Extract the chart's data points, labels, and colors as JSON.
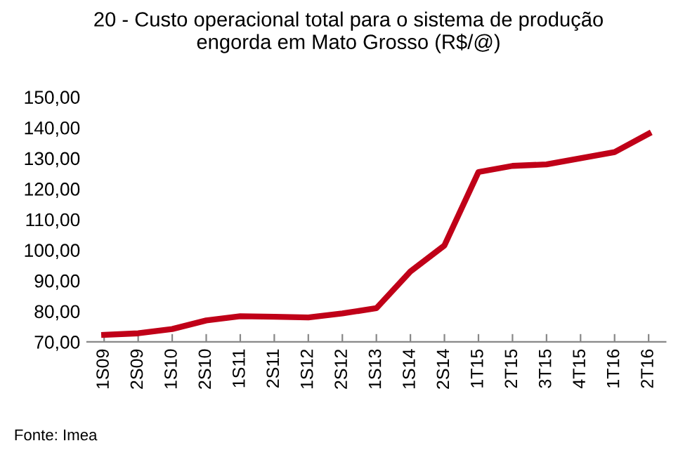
{
  "chart_data": {
    "type": "line",
    "title": "20 - Custo operacional total para o sistema de produção\nengorda em Mato Grosso (R$/@)",
    "categories": [
      "1S09",
      "2S09",
      "1S10",
      "2S10",
      "1S11",
      "2S11",
      "1S12",
      "2S12",
      "1S13",
      "1S14",
      "2S14",
      "1T15",
      "2T15",
      "3T15",
      "4T15",
      "1T16",
      "2T16"
    ],
    "series": [
      {
        "color": "#c00018",
        "values": [
          72.3,
          72.8,
          74.2,
          77.0,
          78.4,
          78.2,
          78.0,
          79.3,
          81.0,
          93.0,
          101.5,
          125.5,
          127.5,
          128.0,
          130.0,
          132.0,
          138.0
        ]
      }
    ],
    "ylim": [
      70,
      150
    ],
    "yticks": [
      {
        "value": 70,
        "label": "70,00"
      },
      {
        "value": 80,
        "label": "80,00"
      },
      {
        "value": 90,
        "label": "90,00"
      },
      {
        "value": 100,
        "label": "100,00"
      },
      {
        "value": 110,
        "label": "110,00"
      },
      {
        "value": 120,
        "label": "120,00"
      },
      {
        "value": 130,
        "label": "130,00"
      },
      {
        "value": 140,
        "label": "140,00"
      },
      {
        "value": 150,
        "label": "150,00"
      }
    ],
    "grid": false,
    "legend": false,
    "marker": "none",
    "line_style": "solid",
    "annotations": [
      "Fonte: Imea"
    ]
  }
}
